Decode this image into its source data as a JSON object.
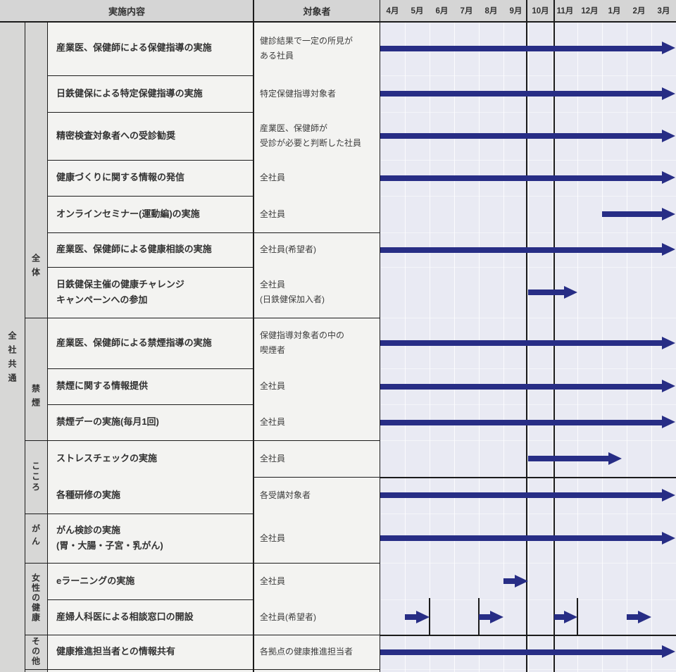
{
  "header": {
    "col_content": "実施内容",
    "col_target": "対象者"
  },
  "left_group": {
    "label": "全社共通"
  },
  "categories": [
    {
      "label": "全体"
    },
    {
      "label": "禁煙"
    },
    {
      "label": "こころ"
    },
    {
      "label": "がん"
    },
    {
      "label": "女性の健康"
    },
    {
      "label": "その他"
    }
  ],
  "rows": [
    {
      "label": [
        "産業医、保健師による保健指導の実施"
      ],
      "target": [
        "健診結果で一定の所見が",
        "ある社員"
      ]
    },
    {
      "label": [
        "日鉄健保による特定保健指導の実施"
      ],
      "target": [
        "特定保健指導対象者"
      ]
    },
    {
      "label": [
        "精密検査対象者への受診勧奨"
      ],
      "target": [
        "産業医、保健師が",
        "受診が必要と判断した社員"
      ]
    },
    {
      "label": [
        "健康づくりに関する情報の発信"
      ],
      "target": [
        "全社員"
      ]
    },
    {
      "label": [
        "オンラインセミナー(運動編)の実施"
      ],
      "target": [
        "全社員"
      ]
    },
    {
      "label": [
        "産業医、保健師による健康相談の実施"
      ],
      "target": [
        "全社員(希望者)"
      ]
    },
    {
      "label": [
        "日鉄健保主催の健康チャレンジ",
        "キャンペーンへの参加"
      ],
      "target": [
        "全社員",
        "(日鉄健保加入者)"
      ]
    },
    {
      "label": [
        "産業医、保健師による禁煙指導の実施"
      ],
      "target": [
        "保健指導対象者の中の",
        "喫煙者"
      ]
    },
    {
      "label": [
        "禁煙に関する情報提供"
      ],
      "target": [
        "全社員"
      ]
    },
    {
      "label": [
        "禁煙デーの実施(毎月1回)"
      ],
      "target": [
        "全社員"
      ]
    },
    {
      "label": [
        "ストレスチェックの実施"
      ],
      "target": [
        "全社員"
      ]
    },
    {
      "label": [
        "各種研修の実施"
      ],
      "target": [
        "各受講対象者"
      ]
    },
    {
      "label": [
        "がん検診の実施",
        "(胃・大腸・子宮・乳がん)"
      ],
      "target": [
        "全社員"
      ]
    },
    {
      "label": [
        "eラーニングの実施"
      ],
      "target": [
        "全社員"
      ]
    },
    {
      "label": [
        "産婦人科医による相談窓口の開設"
      ],
      "target": [
        "全社員(希望者)"
      ]
    },
    {
      "label": [
        "健康推進担当者との情報共有"
      ],
      "target": [
        "各拠点の健康推進担当者"
      ]
    }
  ],
  "chart_data": {
    "type": "gantt",
    "unit": "month",
    "months": [
      "4月",
      "5月",
      "6月",
      "7月",
      "8月",
      "9月",
      "10月",
      "11月",
      "12月",
      "1月",
      "2月",
      "3月"
    ],
    "emphasized_month": "10月",
    "bars": [
      {
        "row": 1,
        "activity": "産業医、保健師による保健指導の実施",
        "period": "4月〜3月",
        "segments": [
          [
            0,
            12
          ]
        ]
      },
      {
        "row": 2,
        "activity": "日鉄健保による特定保健指導の実施",
        "period": "4月〜3月",
        "segments": [
          [
            0,
            12
          ]
        ]
      },
      {
        "row": 3,
        "activity": "精密検査対象者への受診勧奨",
        "period": "4月〜3月",
        "segments": [
          [
            0,
            12
          ]
        ]
      },
      {
        "row": 4,
        "activity": "健康づくりに関する情報の発信",
        "period": "4月〜3月",
        "segments": [
          [
            0,
            12
          ]
        ]
      },
      {
        "row": 5,
        "activity": "オンラインセミナー(運動編)の実施",
        "period": "1月〜3月",
        "segments": [
          [
            9,
            12
          ]
        ]
      },
      {
        "row": 6,
        "activity": "産業医、保健師による健康相談の実施",
        "period": "4月〜3月",
        "segments": [
          [
            0,
            12
          ]
        ]
      },
      {
        "row": 7,
        "activity": "日鉄健保主催の健康チャレンジキャンペーンへの参加",
        "period": "10月〜11月",
        "segments": [
          [
            6,
            8
          ]
        ]
      },
      {
        "row": 8,
        "activity": "産業医、保健師による禁煙指導の実施",
        "period": "4月〜3月",
        "segments": [
          [
            0,
            12
          ]
        ]
      },
      {
        "row": 9,
        "activity": "禁煙に関する情報提供",
        "period": "4月〜3月",
        "segments": [
          [
            0,
            12
          ]
        ]
      },
      {
        "row": 10,
        "activity": "禁煙デーの実施(毎月1回)",
        "period": "4月〜3月",
        "segments": [
          [
            0,
            12
          ]
        ]
      },
      {
        "row": 11,
        "activity": "ストレスチェックの実施",
        "period": "10月〜1月",
        "segments": [
          [
            6,
            9.8
          ]
        ]
      },
      {
        "row": 12,
        "activity": "各種研修の実施",
        "period": "4月〜3月",
        "segments": [
          [
            0,
            12
          ]
        ]
      },
      {
        "row": 13,
        "activity": "がん検診の実施(胃・大腸・子宮・乳がん)",
        "period": "4月〜3月",
        "segments": [
          [
            0,
            12
          ]
        ]
      },
      {
        "row": 14,
        "activity": "eラーニングの実施",
        "period": "9月",
        "segments": [
          [
            5,
            6
          ]
        ]
      },
      {
        "row": 15,
        "activity": "産婦人科医による相談窓口の開設",
        "period": "5月・8月・11月・2月",
        "segments": [
          [
            1,
            2
          ],
          [
            4,
            5
          ],
          [
            7.05,
            8
          ],
          [
            10,
            11
          ]
        ]
      },
      {
        "row": 16,
        "activity": "健康推進担当者との情報共有",
        "period": "4月〜3月",
        "segments": [
          [
            0,
            12
          ]
        ]
      }
    ]
  },
  "colors": {
    "arrow": "#272d85",
    "chart_bg": "#e9eaf3",
    "header_bg": "#d5d5d5",
    "group_col_bg": "#d7d7d6",
    "cell_bg": "#f3f3f1",
    "border": "#1b1b1b"
  }
}
